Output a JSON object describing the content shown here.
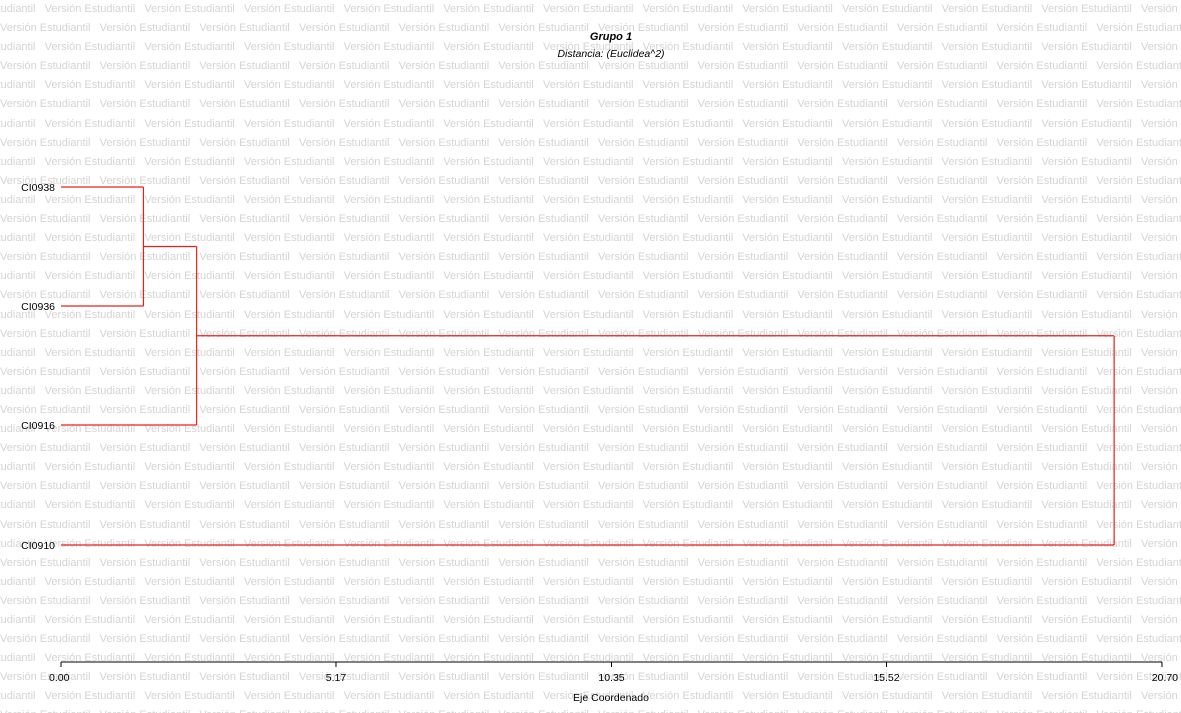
{
  "watermark_text": "Versión Estudiantil",
  "chart_data": {
    "type": "dendrogram",
    "title": "Grupo 1",
    "subtitle": "Distancia: (Euclidea^2)",
    "xlabel": "Eje Coordenado",
    "xlim": [
      0,
      20.7
    ],
    "x_ticks": [
      "0.00",
      "5.17",
      "10.35",
      "15.52",
      "20.70"
    ],
    "orientation": "horizontal",
    "leaves": [
      "CI0938",
      "CI0936",
      "CI0916",
      "CI0910"
    ],
    "merges": [
      {
        "a": "CI0938",
        "b": "CI0936",
        "height": 1.55
      },
      {
        "a": "CI0938+CI0936",
        "b": "CI0916",
        "height": 2.55
      },
      {
        "a": "CI0938+CI0936+CI0916",
        "b": "CI0910",
        "height": 19.8
      }
    ],
    "link_color": "#e8201c",
    "grid": false,
    "legend": "none"
  }
}
